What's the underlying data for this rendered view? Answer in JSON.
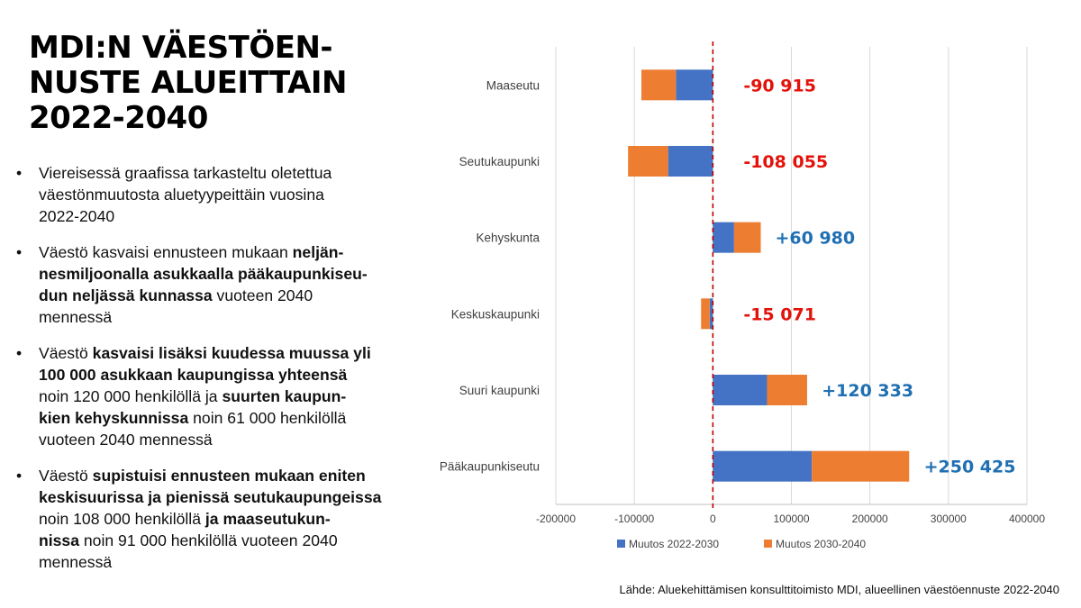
{
  "slide": {
    "title_lines": [
      "MDI:N VÄESTÖEN-",
      "NUSTE ALUEITTAIN",
      "2022-2040"
    ],
    "bullets": [
      {
        "lines": [
          [
            {
              "t": "Viereisessä graafissa tarkasteltu oletettua",
              "b": false
            }
          ],
          [
            {
              "t": "väestönmuutosta aluetyypeittäin vuosina",
              "b": false
            }
          ],
          [
            {
              "t": "2022-2040",
              "b": false
            }
          ]
        ]
      },
      {
        "lines": [
          [
            {
              "t": "Väestö kasvaisi ennusteen mukaan ",
              "b": false
            },
            {
              "t": "neljän-",
              "b": true
            }
          ],
          [
            {
              "t": "nesmiljoonalla asukkaalla pääkaupunkiseu-",
              "b": true
            }
          ],
          [
            {
              "t": "dun neljässä kunnassa",
              "b": true
            },
            {
              "t": " vuoteen 2040",
              "b": false
            }
          ],
          [
            {
              "t": "mennessä",
              "b": false
            }
          ]
        ]
      },
      {
        "lines": [
          [
            {
              "t": "Väestö ",
              "b": false
            },
            {
              "t": "kasvaisi lisäksi kuudessa muussa yli",
              "b": true
            }
          ],
          [
            {
              "t": "100 000 asukkaan kaupungissa yhteensä",
              "b": true
            }
          ],
          [
            {
              "t": "noin 120 000 henkilöllä ja ",
              "b": false
            },
            {
              "t": "suurten kaupun-",
              "b": true
            }
          ],
          [
            {
              "t": "kien kehyskunnissa",
              "b": true
            },
            {
              "t": " noin 61 000 henkilöllä",
              "b": false
            }
          ],
          [
            {
              "t": "vuoteen 2040 mennessä",
              "b": false
            }
          ]
        ]
      },
      {
        "lines": [
          [
            {
              "t": "Väestö ",
              "b": false
            },
            {
              "t": "supistuisi ennusteen mukaan eniten",
              "b": true
            }
          ],
          [
            {
              "t": "keskisuurissa ja pienissä seutukaupungeissa",
              "b": true
            }
          ],
          [
            {
              "t": "noin 108 000 henkilöllä ",
              "b": false
            },
            {
              "t": "ja maaseutukun-",
              "b": true
            }
          ],
          [
            {
              "t": "nissa",
              "b": true
            },
            {
              "t": " noin 91 000 henkilöllä vuoteen 2040",
              "b": false
            }
          ],
          [
            {
              "t": "mennessä",
              "b": false
            }
          ]
        ]
      }
    ],
    "bullet_char": "•",
    "source": "Lähde: Aluekehittämisen konsulttitoimisto MDI, alueellinen väestöennuste 2022-2040"
  },
  "chart_data": {
    "type": "bar",
    "orientation": "horizontal",
    "stacked": true,
    "categories": [
      "Maaseutu",
      "Seutukaupunki",
      "Kehyskunta",
      "Keskuskaupunki",
      "Suuri kaupunki",
      "Pääkaupunkiseutu"
    ],
    "series": [
      {
        "name": "Muutos 2022-2030",
        "color": "#4472C4",
        "values": [
          -47000,
          -57000,
          27000,
          -4000,
          69000,
          126000
        ]
      },
      {
        "name": "Muutos 2030-2040",
        "color": "#ED7D31",
        "values": [
          -44000,
          -51000,
          34000,
          -11000,
          51000,
          124000
        ]
      }
    ],
    "totals": [
      -90915,
      -108055,
      60980,
      -15071,
      120333,
      250425
    ],
    "total_labels": [
      "-90 915",
      "-108 055",
      "+60 980",
      "-15 071",
      "+120 333",
      "+250 425"
    ],
    "label_colors": {
      "negative": "#E3120B",
      "positive": "#1F6FB2"
    },
    "xlim": [
      -200000,
      400000
    ],
    "xticks": [
      -200000,
      -100000,
      0,
      100000,
      200000,
      300000,
      400000
    ],
    "xtick_labels": [
      "-200000",
      "-100000",
      "0",
      "100000",
      "200000",
      "300000",
      "400000"
    ],
    "zero_line": {
      "style": "dashed",
      "color": "#C00000"
    },
    "grid": true,
    "legend_position": "bottom",
    "title": "",
    "xlabel": "",
    "ylabel": ""
  }
}
